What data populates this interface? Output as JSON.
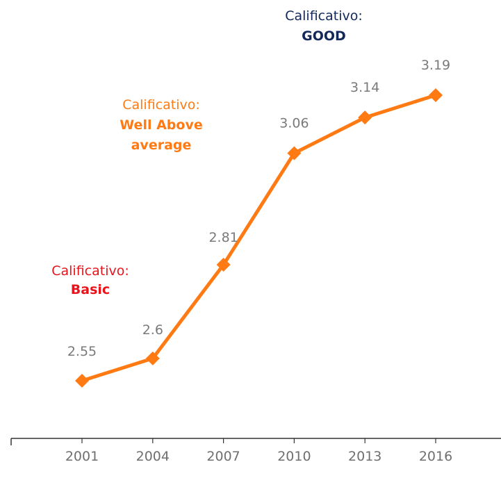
{
  "chart_data": {
    "type": "line",
    "title": "",
    "xlabel": "",
    "ylabel": "",
    "categories": [
      "2001",
      "2004",
      "2007",
      "2010",
      "2013",
      "2016"
    ],
    "series": [
      {
        "values": [
          2.55,
          2.6,
          2.81,
          3.06,
          3.14,
          3.19
        ],
        "value_labels": [
          "2.55",
          "2.6",
          "2.81",
          "3.06",
          "3.14",
          "3.19"
        ],
        "color": "#ff7a12",
        "marker": "diamond"
      }
    ],
    "ylim": [
      2.3,
      3.3
    ],
    "grid": false,
    "legend": "none",
    "annotations": [
      {
        "line1": "Calificativo:",
        "line2": "Basic",
        "color": "#e8141c"
      },
      {
        "line1": "Calificativo:",
        "line2": "Well Above",
        "line3": "average",
        "color": "#ff7a12"
      },
      {
        "line1": "Calificativo:",
        "line2": "GOOD",
        "color": "#12275a"
      }
    ]
  }
}
